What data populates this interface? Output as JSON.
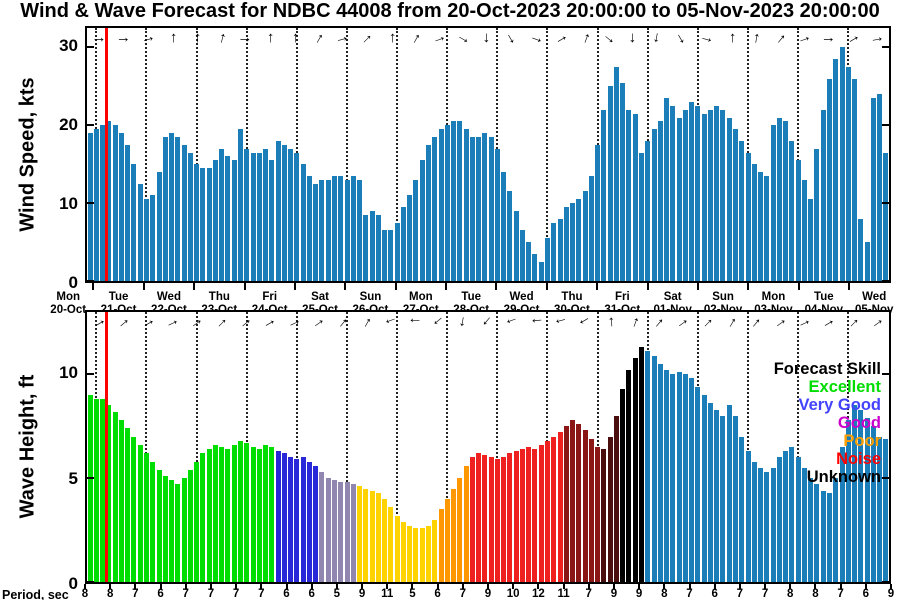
{
  "title": "Wind & Wave Forecast for NDBC 44008 from 20-Oct-2023 20:00:00 to 05-Nov-2023 20:00:00",
  "now_line": {
    "color": "#ff0000",
    "fraction": 0.022
  },
  "x_axis": {
    "day_labels": [
      [
        "Mon",
        "20-Oct"
      ],
      [
        "Tue",
        "21-Oct"
      ],
      [
        "Wed",
        "22-Oct"
      ],
      [
        "Thu",
        "23-Oct"
      ],
      [
        "Fri",
        "24-Oct"
      ],
      [
        "Sat",
        "25-Oct"
      ],
      [
        "Sun",
        "26-Oct"
      ],
      [
        "Mon",
        "27-Oct"
      ],
      [
        "Tue",
        "28-Oct"
      ],
      [
        "Wed",
        "29-Oct"
      ],
      [
        "Thu",
        "30-Oct"
      ],
      [
        "Fri",
        "31-Oct"
      ],
      [
        "Sat",
        "01-Nov"
      ],
      [
        "Sun",
        "02-Nov"
      ],
      [
        "Mon",
        "03-Nov"
      ],
      [
        "Tue",
        "04-Nov"
      ],
      [
        "Wed",
        "05-Nov"
      ]
    ],
    "period_label": "Period, sec",
    "period_values": [
      8,
      8,
      7,
      6,
      7,
      7,
      7,
      7,
      6,
      6,
      5,
      9,
      11,
      5,
      6,
      7,
      9,
      10,
      12,
      11,
      7,
      9,
      9,
      8,
      7,
      6,
      7,
      7,
      8,
      8,
      7,
      6,
      9
    ]
  },
  "legend": {
    "title": "Forecast Skill",
    "entries": [
      {
        "label": "Excellent",
        "color": "#00dd00"
      },
      {
        "label": "Very Good",
        "color": "#4343ff"
      },
      {
        "label": "Good",
        "color": "#cc00cc"
      },
      {
        "label": "Poor",
        "color": "#ffa000"
      },
      {
        "label": "Noise",
        "color": "#ff0000"
      },
      {
        "label": "Unknown",
        "color": "#000000"
      }
    ]
  },
  "chart_data": [
    {
      "type": "bar",
      "name": "wind-speed",
      "ylabel": "Wind Speed, kts",
      "ylim": [
        0,
        32.5
      ],
      "yticks": [
        0,
        10,
        20,
        30
      ],
      "x_start": "20-Oct-2023 20:00:00",
      "x_end": "05-Nov-2023 20:00:00",
      "interval_hours": 3,
      "bar_color": "#1b7eb8",
      "values": [
        19,
        19.5,
        20,
        20.5,
        20,
        19,
        17.5,
        15,
        12.5,
        10.5,
        11,
        14,
        18.5,
        19,
        18.5,
        17.5,
        16.5,
        15,
        14.5,
        14.5,
        15.5,
        17,
        16,
        15.5,
        19.5,
        17,
        16.5,
        16.5,
        17,
        15.5,
        18,
        17.5,
        17,
        16.5,
        15,
        13.5,
        12.5,
        13,
        13,
        13.5,
        13.5,
        13,
        13.5,
        13,
        8.5,
        9,
        8.5,
        6.5,
        6.5,
        7.5,
        9.5,
        11,
        13,
        15.5,
        17.5,
        18.5,
        19.5,
        20,
        20.5,
        20.5,
        19.5,
        18.5,
        18.5,
        19,
        18.5,
        17,
        14,
        11.5,
        9,
        6.5,
        5,
        3.5,
        2.5,
        5.5,
        7.5,
        8,
        9.5,
        10,
        10.5,
        11.5,
        13.5,
        17.5,
        22,
        25,
        27.5,
        25.5,
        22,
        21.5,
        16.5,
        18,
        19.5,
        20.5,
        23.5,
        22.5,
        21,
        22,
        23,
        22.5,
        21.5,
        22,
        22.5,
        22,
        21,
        19.5,
        18,
        16.5,
        15,
        14,
        13.5,
        20,
        21,
        20.5,
        18,
        15.5,
        13,
        10.5,
        17,
        22,
        26,
        28.5,
        30,
        27.5,
        26,
        8,
        5,
        23.5,
        24,
        16.5
      ],
      "direction_arrows_deg": [
        0,
        0,
        -15,
        -90,
        -90,
        -75,
        0,
        -90,
        -90,
        -60,
        -15,
        -45,
        -90,
        -60,
        -20,
        30,
        90,
        60,
        20,
        -30,
        -70,
        40,
        90,
        100,
        60,
        15,
        -90,
        -80,
        -50,
        -20,
        0,
        -30,
        -10
      ]
    },
    {
      "type": "bar",
      "name": "wave-height",
      "ylabel": "Wave Height, ft",
      "ylim": [
        0,
        13
      ],
      "yticks": [
        0,
        5,
        10
      ],
      "interval_hours": 3,
      "bar_color": "#1b7eb8",
      "values": [
        9,
        8.8,
        8.8,
        8.5,
        8.2,
        7.8,
        7.4,
        7,
        6.6,
        6.2,
        5.8,
        5.4,
        5.1,
        4.9,
        4.7,
        5,
        5.4,
        5.8,
        6.2,
        6.4,
        6.6,
        6.5,
        6.4,
        6.6,
        6.8,
        6.7,
        6.5,
        6.4,
        6.6,
        6.5,
        6.3,
        6.2,
        6,
        5.9,
        6,
        5.8,
        5.6,
        5.3,
        5,
        4.9,
        4.8,
        4.8,
        4.7,
        4.6,
        4.5,
        4.4,
        4.3,
        4,
        3.6,
        3.2,
        2.9,
        2.7,
        2.6,
        2.6,
        2.7,
        3,
        3.5,
        4,
        4.5,
        5,
        5.6,
        6,
        6.2,
        6.1,
        6,
        5.9,
        6,
        6.2,
        6.3,
        6.4,
        6.5,
        6.4,
        6.6,
        6.8,
        7,
        7.2,
        7.5,
        7.8,
        7.6,
        7.3,
        6.9,
        6.5,
        6.4,
        7,
        8,
        9.3,
        10.2,
        10.8,
        11.3,
        11.1,
        10.9,
        10.5,
        10.2,
        10,
        10.1,
        10,
        9.8,
        9.4,
        9,
        8.6,
        8.3,
        8,
        8.5,
        8,
        7,
        6.3,
        5.8,
        5.5,
        5.3,
        5.5,
        6,
        6.3,
        6.5,
        6,
        5.5,
        5,
        4.7,
        4.4,
        4.3,
        5,
        6.5,
        7.8,
        8.5,
        8.3,
        7.9,
        7.5,
        7,
        6.9
      ],
      "skill_segments": [
        {
          "from": 0,
          "to": 29,
          "skill": "Excellent",
          "color": "#00dd00"
        },
        {
          "from": 30,
          "to": 36,
          "skill": "Very Good",
          "color": "#2828d8"
        },
        {
          "from": 37,
          "to": 42,
          "skill": "Good",
          "color": "#9186b0"
        },
        {
          "from": 43,
          "to": 55,
          "skill": "Poor",
          "color": "#ffd300"
        },
        {
          "from": 56,
          "to": 60,
          "skill": "Poor",
          "color": "#ff9800"
        },
        {
          "from": 61,
          "to": 75,
          "skill": "Noise",
          "color": "#ee2020"
        },
        {
          "from": 76,
          "to": 81,
          "skill": "Noise",
          "color": "#8b1616"
        },
        {
          "from": 82,
          "to": 84,
          "skill": "Unknown",
          "color": "#4a0e0e"
        },
        {
          "from": 85,
          "to": 88,
          "skill": "Unknown",
          "color": "#000000"
        },
        {
          "from": 89,
          "to": 127,
          "skill": "default",
          "color": "#1b7eb8"
        }
      ],
      "direction_arrows_deg": [
        -30,
        -40,
        -30,
        -25,
        -35,
        -45,
        -40,
        -30,
        -25,
        -35,
        -50,
        -60,
        160,
        180,
        140,
        100,
        130,
        160,
        175,
        165,
        150,
        -95,
        -70,
        -50,
        -35,
        -45,
        -60,
        -50,
        -35,
        -25,
        -30,
        -45,
        -35
      ]
    }
  ]
}
